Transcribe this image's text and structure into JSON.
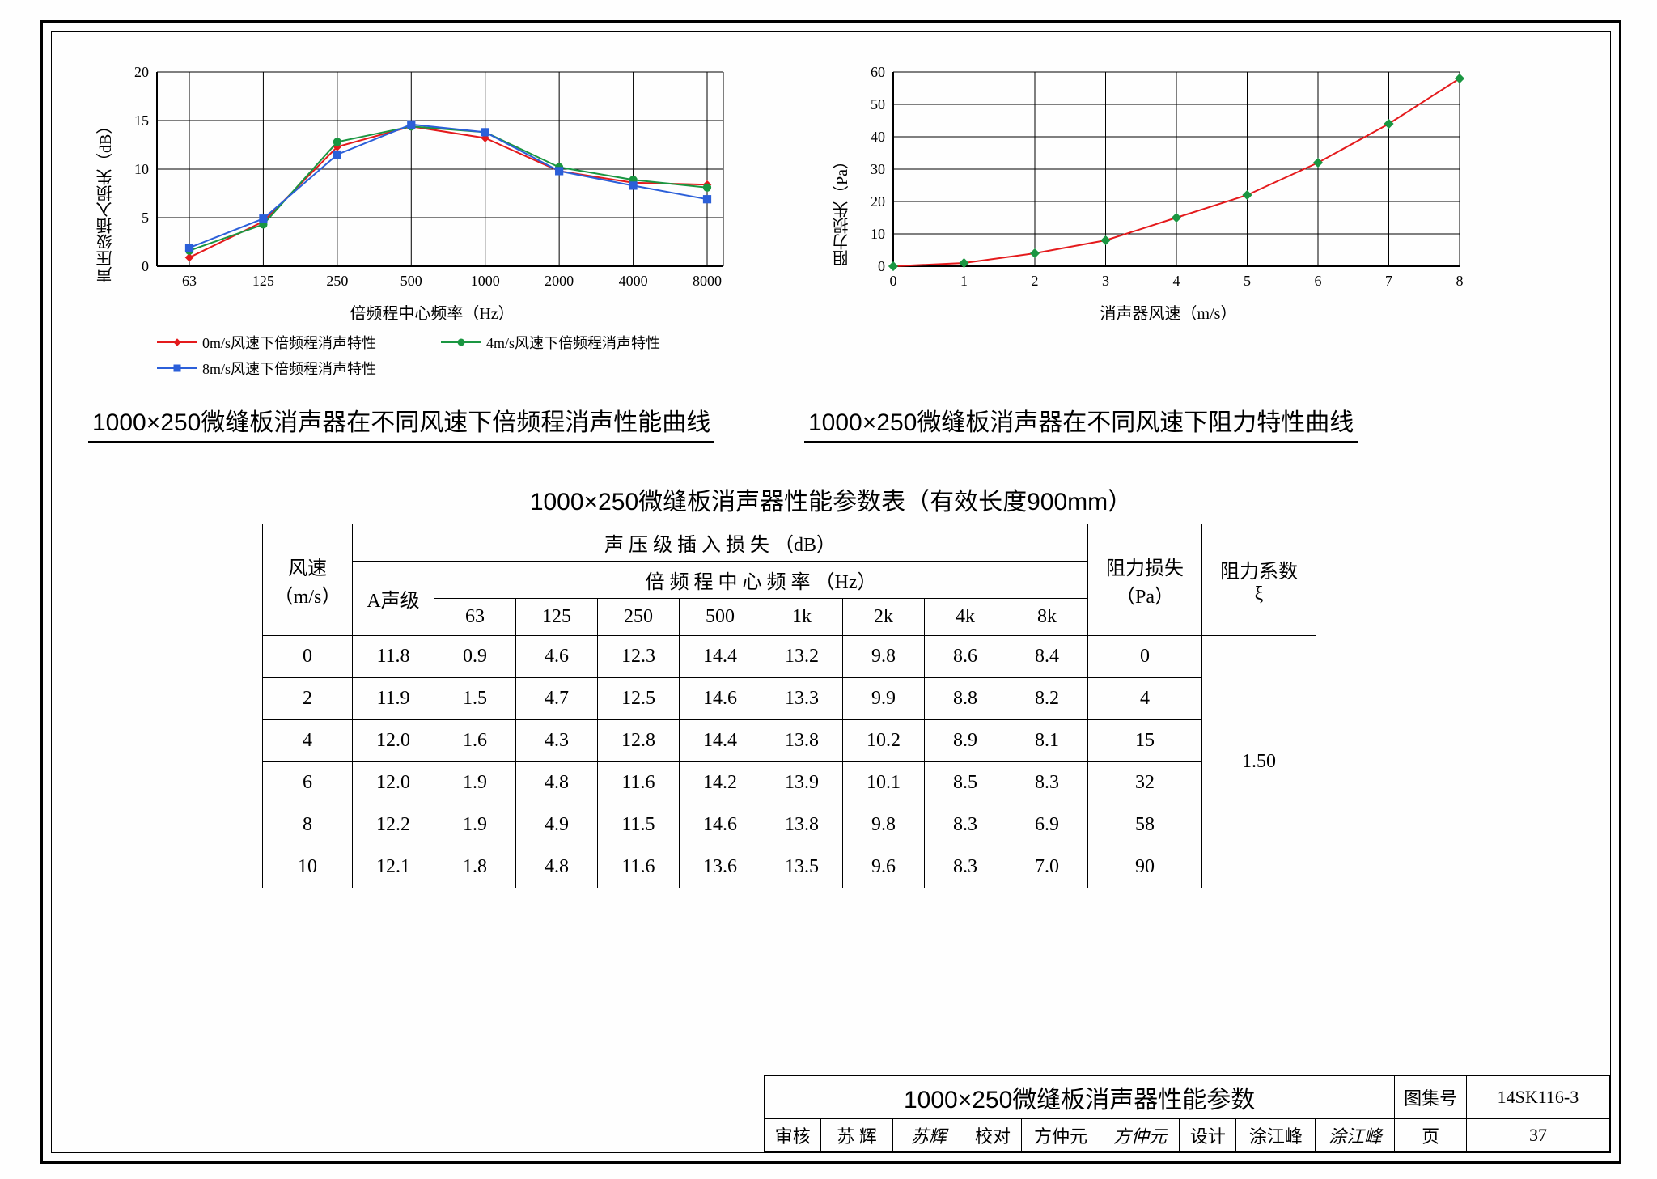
{
  "chart1": {
    "type": "line",
    "ylabel": "声压级插入损失（dB）",
    "xlabel": "倍频程中心频率（Hz）",
    "title": "1000×250微缝板消声器在不同风速下倍频程消声性能曲线",
    "x_categories": [
      "63",
      "125",
      "250",
      "500",
      "1000",
      "2000",
      "4000",
      "8000"
    ],
    "yticks": [
      0,
      5,
      10,
      15,
      20
    ],
    "series": [
      {
        "name": "0m/s风速下倍频程消声特性",
        "color": "#e41a1c",
        "marker": "diamond",
        "values": [
          0.9,
          4.6,
          12.3,
          14.4,
          13.2,
          9.8,
          8.6,
          8.4
        ]
      },
      {
        "name": "4m/s风速下倍频程消声特性",
        "color": "#1a9641",
        "marker": "circle",
        "values": [
          1.6,
          4.3,
          12.8,
          14.4,
          13.8,
          10.2,
          8.9,
          8.1
        ]
      },
      {
        "name": "8m/s风速下倍频程消声特性",
        "color": "#2b5fd9",
        "marker": "square",
        "values": [
          1.9,
          4.9,
          11.5,
          14.6,
          13.8,
          9.8,
          8.3,
          6.9
        ]
      }
    ],
    "grid_color": "#000",
    "background": "#fff",
    "line_width": 2,
    "marker_size": 6
  },
  "chart2": {
    "type": "line",
    "ylabel": "阻力损失（Pa）",
    "xlabel": "消声器风速（m/s）",
    "title": "1000×250微缝板消声器在不同风速下阻力特性曲线",
    "xticks": [
      0,
      1,
      2,
      3,
      4,
      5,
      6,
      7,
      8
    ],
    "yticks": [
      0,
      10,
      20,
      30,
      40,
      50,
      60
    ],
    "series": [
      {
        "name": "阻力",
        "line_color": "#e41a1c",
        "marker_color": "#1a9641",
        "marker": "diamond",
        "values": [
          [
            0,
            0
          ],
          [
            1,
            1
          ],
          [
            2,
            4
          ],
          [
            3,
            8
          ],
          [
            4,
            15
          ],
          [
            5,
            22
          ],
          [
            6,
            32
          ],
          [
            7,
            44
          ],
          [
            8,
            58
          ]
        ]
      }
    ],
    "grid_color": "#000",
    "background": "#fff",
    "line_width": 2,
    "marker_size": 7
  },
  "table": {
    "title": "1000×250微缝板消声器性能参数表（有效长度900mm）",
    "header": {
      "col1": "风速",
      "col1_unit": "（m/s）",
      "group1": "声 压 级 插 入 损 失 （dB）",
      "sub_a": "A声级",
      "group2": "倍 频 程 中 心 频 率 （Hz）",
      "freqs": [
        "63",
        "125",
        "250",
        "500",
        "1k",
        "2k",
        "4k",
        "8k"
      ],
      "col_pa": "阻力损失",
      "col_pa_unit": "（Pa）",
      "col_xi": "阻力系数",
      "col_xi_unit": "ξ"
    },
    "rows": [
      {
        "ws": "0",
        "a": "11.8",
        "f": [
          "0.9",
          "4.6",
          "12.3",
          "14.4",
          "13.2",
          "9.8",
          "8.6",
          "8.4"
        ],
        "pa": "0"
      },
      {
        "ws": "2",
        "a": "11.9",
        "f": [
          "1.5",
          "4.7",
          "12.5",
          "14.6",
          "13.3",
          "9.9",
          "8.8",
          "8.2"
        ],
        "pa": "4"
      },
      {
        "ws": "4",
        "a": "12.0",
        "f": [
          "1.6",
          "4.3",
          "12.8",
          "14.4",
          "13.8",
          "10.2",
          "8.9",
          "8.1"
        ],
        "pa": "15"
      },
      {
        "ws": "6",
        "a": "12.0",
        "f": [
          "1.9",
          "4.8",
          "11.6",
          "14.2",
          "13.9",
          "10.1",
          "8.5",
          "8.3"
        ],
        "pa": "32"
      },
      {
        "ws": "8",
        "a": "12.2",
        "f": [
          "1.9",
          "4.9",
          "11.5",
          "14.6",
          "13.8",
          "9.8",
          "8.3",
          "6.9"
        ],
        "pa": "58"
      },
      {
        "ws": "10",
        "a": "12.1",
        "f": [
          "1.8",
          "4.8",
          "11.6",
          "13.6",
          "13.5",
          "9.6",
          "8.3",
          "7.0"
        ],
        "pa": "90"
      }
    ],
    "xi": "1.50",
    "col_widths": {
      "ws": 110,
      "a": 100,
      "f": 100,
      "pa": 140,
      "xi": 140
    }
  },
  "footer": {
    "title": "1000×250微缝板消声器性能参数",
    "set_label": "图集号",
    "set_no": "14SK116-3",
    "r2": {
      "c1": "审核",
      "c2": "苏 辉",
      "c3": "苏辉",
      "c4": "校对",
      "c5": "方仲元",
      "c6": "方仲元",
      "c7": "设计",
      "c8": "涂江峰",
      "c9": "涂江峰",
      "c10": "页",
      "c11": "37"
    }
  }
}
